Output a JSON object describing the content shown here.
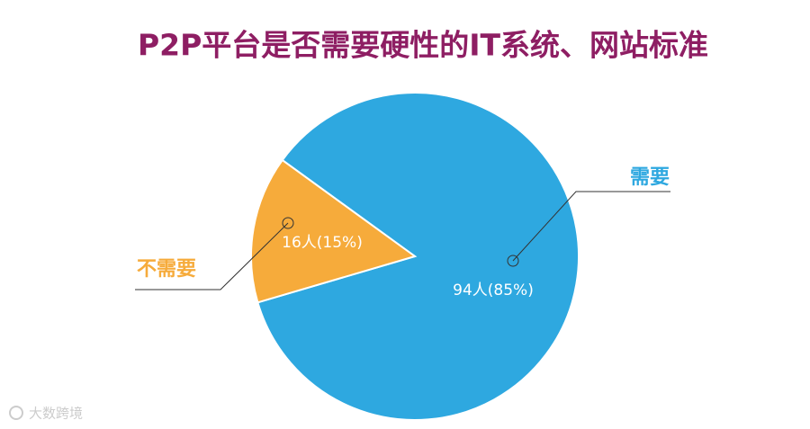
{
  "chart_data": {
    "type": "pie",
    "title": "P2P平台是否需要硬性的IT系统、网站标准",
    "categories": [
      "需要",
      "不需要"
    ],
    "values": [
      94,
      16
    ],
    "value_labels": [
      "94人(85%)",
      "16人(15%)"
    ],
    "colors": [
      "#2ea8e0",
      "#f6ab3b"
    ],
    "watermark": "大数跨境"
  }
}
